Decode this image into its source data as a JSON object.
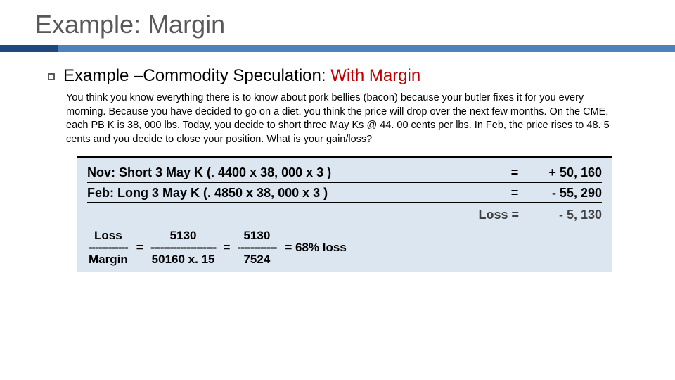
{
  "title": "Example: Margin",
  "subheading_main": "Example –Commodity Speculation:  ",
  "subheading_em": "With Margin",
  "body": "You think you know everything there is to know about pork bellies (bacon) because your butler fixes it for you every morning.  Because you have decided to go on a diet, you think the price will drop over the next few months.  On the CME, each PB K is 38, 000 lbs.  Today, you decide to short three May Ks @ 44. 00 cents per lbs.  In Feb, the price rises to 48. 5 cents and you decide to close your position. What is your gain/loss?",
  "calc": {
    "row1_label": "Nov: Short 3 May K (. 4400 x 38, 000 x 3 )",
    "row1_eq": "=",
    "row1_val": "+ 50, 160",
    "row2_label": "Feb: Long 3 May K (. 4850 x 38, 000 x 3 )",
    "row2_eq": "=",
    "row2_val": "- 55, 290",
    "loss_label": "Loss  =",
    "loss_val": "- 5, 130",
    "frac1_top": "Loss",
    "frac1_dash": "------------",
    "frac1_bot": "Margin",
    "eq": "=",
    "frac2_top": "5130",
    "frac2_dash": "--------------------",
    "frac2_bot": "50160 x. 15",
    "frac3_top": "5130",
    "frac3_dash": "------------",
    "frac3_bot": "7524",
    "result": "= 68% loss"
  },
  "colors": {
    "rule_dark": "#1f497d",
    "rule_light": "#4f81bd",
    "box_bg": "#dce6f1",
    "emphasis": "#c00000"
  }
}
